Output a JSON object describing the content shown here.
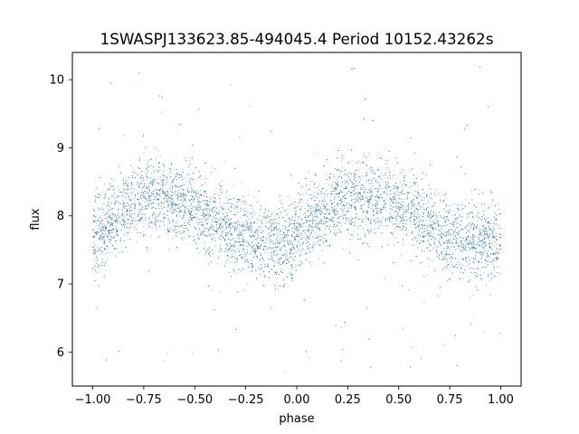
{
  "chart_data": {
    "type": "scatter",
    "title": "1SWASPJ133623.85-494045.4 Period 10152.43262s",
    "xlabel": "phase",
    "ylabel": "flux",
    "xlim": [
      -1.1,
      1.1
    ],
    "ylim": [
      5.5,
      10.4
    ],
    "xticks": [
      -1.0,
      -0.75,
      -0.5,
      -0.25,
      0.0,
      0.25,
      0.5,
      0.75,
      1.0
    ],
    "xtick_labels": [
      "−1.00",
      "−0.75",
      "−0.50",
      "−0.25",
      "0.00",
      "0.25",
      "0.50",
      "0.75",
      "1.00"
    ],
    "yticks": [
      6,
      7,
      8,
      9,
      10
    ],
    "ytick_labels": [
      "6",
      "7",
      "8",
      "9",
      "10"
    ],
    "grid": false,
    "legend": "none",
    "marker_color": "#1f77b4",
    "series": [
      {
        "phase_range": [
          -1.0,
          1.0
        ],
        "profile": [
          {
            "phase": -1.0,
            "flux": 7.65
          },
          {
            "phase": -0.9,
            "flux": 7.95
          },
          {
            "phase": -0.75,
            "flux": 8.3
          },
          {
            "phase": -0.65,
            "flux": 8.3
          },
          {
            "phase": -0.5,
            "flux": 8.1
          },
          {
            "phase": -0.35,
            "flux": 7.85
          },
          {
            "phase": -0.2,
            "flux": 7.6
          },
          {
            "phase": -0.05,
            "flux": 7.6
          },
          {
            "phase": 0.0,
            "flux": 7.65
          },
          {
            "phase": 0.1,
            "flux": 7.95
          },
          {
            "phase": 0.25,
            "flux": 8.3
          },
          {
            "phase": 0.35,
            "flux": 8.3
          },
          {
            "phase": 0.5,
            "flux": 8.1
          },
          {
            "phase": 0.65,
            "flux": 7.85
          },
          {
            "phase": 0.8,
            "flux": 7.6
          },
          {
            "phase": 0.95,
            "flux": 7.6
          },
          {
            "phase": 1.0,
            "flux": 7.65
          }
        ],
        "scatter_sigma": 0.28,
        "outlier_range": [
          5.7,
          10.2
        ]
      }
    ]
  }
}
